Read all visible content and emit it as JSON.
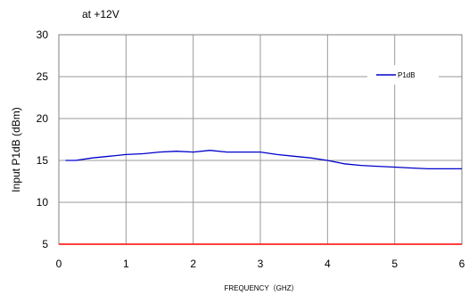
{
  "chart_data": {
    "type": "line",
    "title": "at +12V",
    "xlabel": "FREQUENCY（GHZ）",
    "ylabel": "Input P1dB (dBm)",
    "xlim": [
      0,
      6
    ],
    "ylim": [
      5,
      30
    ],
    "x_ticks": [
      0,
      1,
      2,
      3,
      4,
      5,
      6
    ],
    "y_ticks": [
      5,
      10,
      15,
      20,
      25,
      30
    ],
    "grid": true,
    "legend_position": "top-right",
    "series": [
      {
        "name": "P1dB",
        "color": "#0000cc",
        "x": [
          0.1,
          0.25,
          0.5,
          0.75,
          1.0,
          1.25,
          1.5,
          1.75,
          2.0,
          2.25,
          2.5,
          2.75,
          3.0,
          3.25,
          3.5,
          3.75,
          4.0,
          4.25,
          4.5,
          4.75,
          5.0,
          5.25,
          5.5,
          5.75,
          6.0
        ],
        "y": [
          15.0,
          15.0,
          15.3,
          15.5,
          15.7,
          15.8,
          16.0,
          16.1,
          16.0,
          16.2,
          16.0,
          16.0,
          16.0,
          15.7,
          15.5,
          15.3,
          15.0,
          14.6,
          14.4,
          14.3,
          14.2,
          14.1,
          14.0,
          14.0,
          14.0
        ]
      }
    ],
    "reference_line": {
      "y": 5,
      "color": "#ff0000"
    }
  }
}
